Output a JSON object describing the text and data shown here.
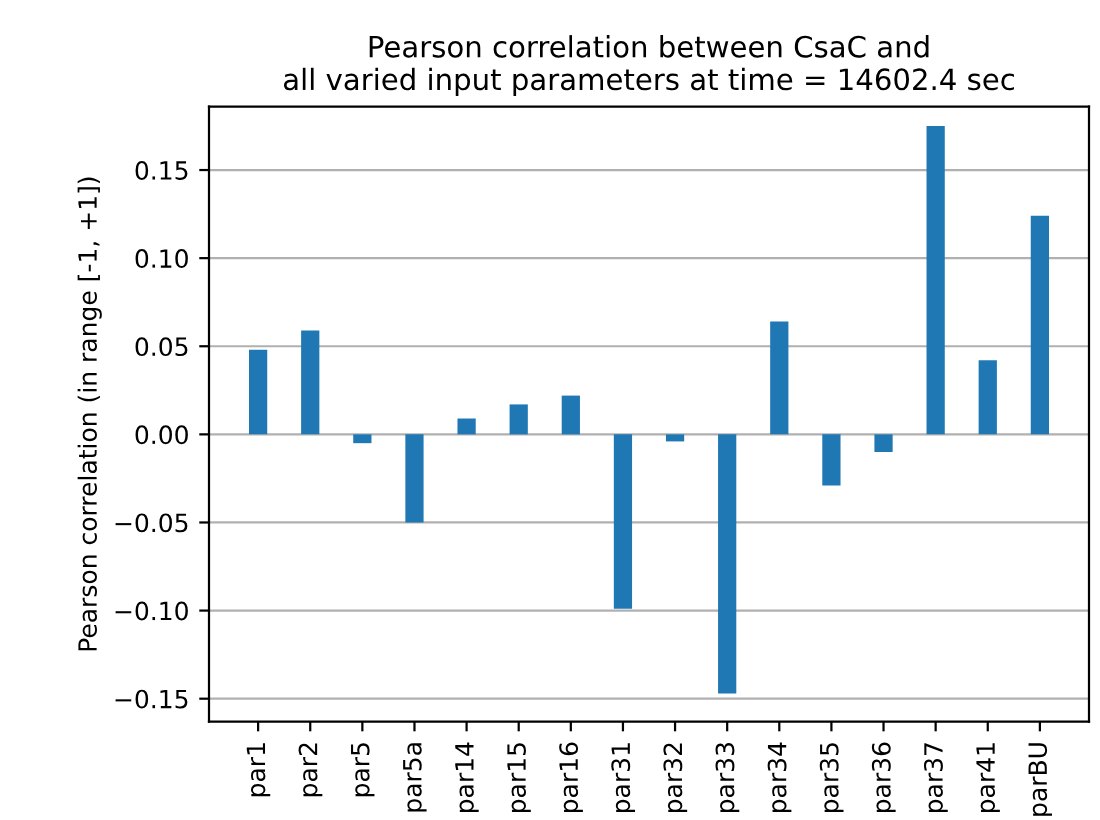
{
  "chart_data": {
    "type": "bar",
    "title": "Pearson correlation between CsaC and\nall varied input parameters at time = 14602.4 sec",
    "ylabel": "Pearson correlation (in range [-1, +1])",
    "categories": [
      "par1",
      "par2",
      "par5",
      "par5a",
      "par14",
      "par15",
      "par16",
      "par31",
      "par32",
      "par33",
      "par34",
      "par35",
      "par36",
      "par37",
      "par41",
      "parBU"
    ],
    "values": [
      0.048,
      0.059,
      -0.005,
      -0.05,
      0.009,
      0.017,
      0.022,
      -0.099,
      -0.004,
      -0.147,
      0.064,
      -0.029,
      -0.01,
      0.175,
      0.042,
      0.124
    ],
    "color": "#1f77b4",
    "ylim": [
      -0.163,
      0.186
    ],
    "yticks": [
      {
        "value": -0.15,
        "label": "−0.15"
      },
      {
        "value": -0.1,
        "label": "−0.10"
      },
      {
        "value": -0.05,
        "label": "−0.05"
      },
      {
        "value": 0,
        "label": "0.00"
      },
      {
        "value": 0.05,
        "label": "0.05"
      },
      {
        "value": 0.1,
        "label": "0.10"
      },
      {
        "value": 0.15,
        "label": "0.15"
      }
    ],
    "grid": "y"
  }
}
